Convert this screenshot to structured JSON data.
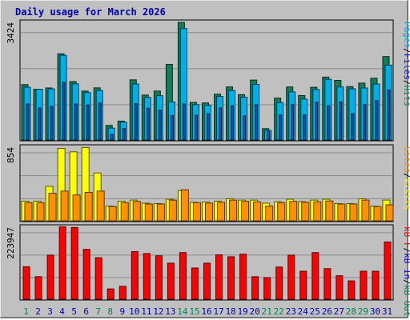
{
  "title": "Daily usage for March 2026",
  "colors": {
    "hits": "#147a5c",
    "files": "#00aeea",
    "pages": "#0a56b4",
    "visits": "#ffff00",
    "sites": "#ff9100",
    "kbin": "#0000ff",
    "kbout": "#ff0000",
    "weekend_day": "#00805c",
    "weekday": "#0000b0"
  },
  "chart_data": [
    {
      "type": "bar",
      "panel": "hits-files-pages",
      "max_label": "3424",
      "ymax": 3424,
      "legend": [
        "Pages",
        "/",
        "Files",
        "/",
        "Hits"
      ],
      "legend_colors": [
        "#00aeea",
        "#000000",
        "#0000ff",
        "#000000",
        "#00805c"
      ],
      "categories": [
        "1",
        "2",
        "3",
        "4",
        "5",
        "6",
        "7",
        "8",
        "9",
        "10",
        "11",
        "12",
        "13",
        "14",
        "15",
        "16",
        "17",
        "18",
        "19",
        "20",
        "21",
        "22",
        "23",
        "24",
        "25",
        "26",
        "27",
        "28",
        "29",
        "30",
        "31"
      ],
      "weekend_days": [
        "1",
        "7",
        "8",
        "14",
        "15",
        "21",
        "22",
        "28",
        "29"
      ],
      "series": [
        {
          "name": "Hits",
          "values": [
            1612,
            1478,
            1515,
            2510,
            1702,
            1425,
            1518,
            425,
            550,
            1752,
            1308,
            1425,
            2200,
            3424,
            1095,
            1080,
            1335,
            1545,
            1320,
            1745,
            330,
            1220,
            1545,
            1295,
            1535,
            1832,
            1735,
            1555,
            1655,
            1798,
            2430
          ]
        },
        {
          "name": "Files",
          "values": [
            1535,
            1478,
            1488,
            2465,
            1635,
            1380,
            1445,
            345,
            520,
            1630,
            1240,
            1290,
            1112,
            3245,
            1030,
            1010,
            1270,
            1440,
            1245,
            1620,
            280,
            1090,
            1400,
            1190,
            1470,
            1765,
            1545,
            1490,
            1515,
            1630,
            2180
          ]
        },
        {
          "name": "Pages",
          "values": [
            1050,
            930,
            980,
            1680,
            1050,
            1020,
            1075,
            165,
            335,
            1060,
            925,
            870,
            710,
            1050,
            720,
            765,
            935,
            1000,
            700,
            1030,
            245,
            730,
            1030,
            730,
            1100,
            1000,
            1110,
            770,
            1030,
            1150,
            1460
          ]
        }
      ]
    },
    {
      "type": "bar",
      "panel": "visits-sites",
      "max_label": "854",
      "ymax": 854,
      "legend": [
        "Sites",
        "/",
        "Visits"
      ],
      "legend_colors": [
        "#ff9100",
        "#000000",
        "#ffff00"
      ],
      "categories": [
        "1",
        "2",
        "3",
        "4",
        "5",
        "6",
        "7",
        "8",
        "9",
        "10",
        "11",
        "12",
        "13",
        "14",
        "15",
        "16",
        "17",
        "18",
        "19",
        "20",
        "21",
        "22",
        "23",
        "24",
        "25",
        "26",
        "27",
        "28",
        "29",
        "30",
        "31"
      ],
      "series": [
        {
          "name": "Visits",
          "values": [
            228,
            228,
            400,
            840,
            800,
            850,
            555,
            170,
            228,
            240,
            205,
            200,
            250,
            352,
            215,
            218,
            228,
            255,
            240,
            240,
            205,
            222,
            250,
            222,
            240,
            250,
            200,
            200,
            255,
            170,
            240
          ]
        },
        {
          "name": "Sites",
          "values": [
            210,
            210,
            320,
            345,
            300,
            330,
            345,
            165,
            210,
            225,
            195,
            195,
            240,
            360,
            210,
            205,
            215,
            240,
            225,
            220,
            170,
            210,
            225,
            215,
            220,
            230,
            195,
            195,
            240,
            165,
            185
          ]
        }
      ]
    },
    {
      "type": "bar",
      "panel": "kb-in-out",
      "max_label": "223947",
      "ymax": 223947,
      "legend": [
        "kB F",
        "/",
        "kB In",
        "/",
        "kB Out"
      ],
      "legend_colors": [
        "#ff0000",
        "#000000",
        "#0000ff",
        "#000000",
        "#00805c"
      ],
      "categories": [
        "1",
        "2",
        "3",
        "4",
        "5",
        "6",
        "7",
        "8",
        "9",
        "10",
        "11",
        "12",
        "13",
        "14",
        "15",
        "16",
        "17",
        "18",
        "19",
        "20",
        "21",
        "22",
        "23",
        "24",
        "25",
        "26",
        "27",
        "28",
        "29",
        "30",
        "31"
      ],
      "series": [
        {
          "name": "kB F",
          "values": [
            101000,
            70000,
            137000,
            225000,
            223000,
            155000,
            129000,
            32000,
            40000,
            148000,
            142000,
            135000,
            112000,
            145000,
            97000,
            112000,
            138000,
            132000,
            140000,
            70000,
            67000,
            100000,
            137000,
            87000,
            145000,
            95000,
            73000,
            57000,
            87000,
            87000,
            178000
          ]
        }
      ]
    }
  ]
}
